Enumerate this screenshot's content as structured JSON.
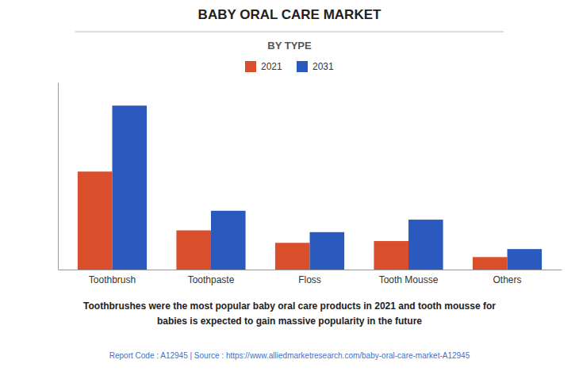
{
  "chart_data": {
    "type": "bar",
    "title": "BABY ORAL CARE MARKET",
    "subtitle": "BY TYPE",
    "categories": [
      "Toothbrush",
      "Toothpaste",
      "Floss",
      "Tooth Mousse",
      "Others"
    ],
    "series": [
      {
        "name": "2021",
        "color": "#d94f2b",
        "values": [
          5.5,
          2.2,
          1.5,
          1.6,
          0.7
        ]
      },
      {
        "name": "2031",
        "color": "#2b5abf",
        "values": [
          9.2,
          3.3,
          2.1,
          2.8,
          1.15
        ]
      }
    ],
    "ylim": [
      0,
      10.5
    ],
    "grid": false,
    "legend": "top",
    "tick_labels": "x",
    "caption": [
      "Toothbrushes were the most popular baby oral care products in 2021 and tooth mousse for",
      "babies is expected to gain massive popularity in the future"
    ],
    "footer": "Report Code : A12945  |  Source : https://www.alliedmarketresearch.com/baby-oral-care-market-A12945"
  }
}
